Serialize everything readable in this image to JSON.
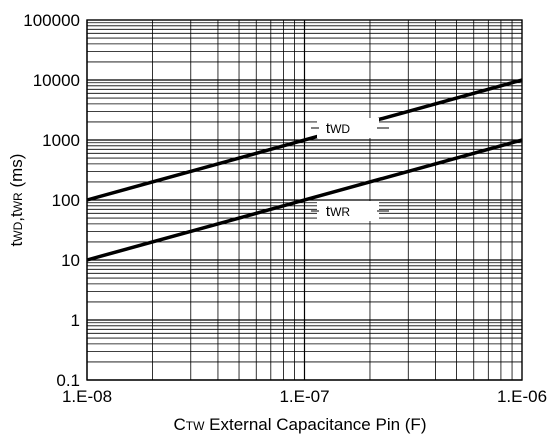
{
  "chart_data": {
    "type": "line",
    "x_scale": "log",
    "y_scale": "log",
    "xlim": [
      1e-08,
      1e-06
    ],
    "ylim": [
      0.1,
      100000
    ],
    "grid": true,
    "xlabel": {
      "prefix": "C",
      "sub": "TW",
      "rest": " External Capacitance Pin (F)"
    },
    "ylabel": {
      "t1": "t",
      "s1": "WD",
      "mid": ",t",
      "s2": "WR",
      "rest": " (ms)"
    },
    "x_tick_labels": [
      "1.E-08",
      "1.E-07",
      "1.E-06"
    ],
    "y_tick_labels": [
      "0.1",
      "1",
      "10",
      "100",
      "1000",
      "10000",
      "100000"
    ],
    "series": [
      {
        "name": "tWD",
        "label_main": "t",
        "label_sub": "WD",
        "x": [
          1e-08,
          1e-06
        ],
        "y": [
          100,
          10000
        ]
      },
      {
        "name": "tWR",
        "label_main": "t",
        "label_sub": "WR",
        "x": [
          1e-08,
          1e-06
        ],
        "y": [
          10,
          1000
        ]
      }
    ]
  }
}
